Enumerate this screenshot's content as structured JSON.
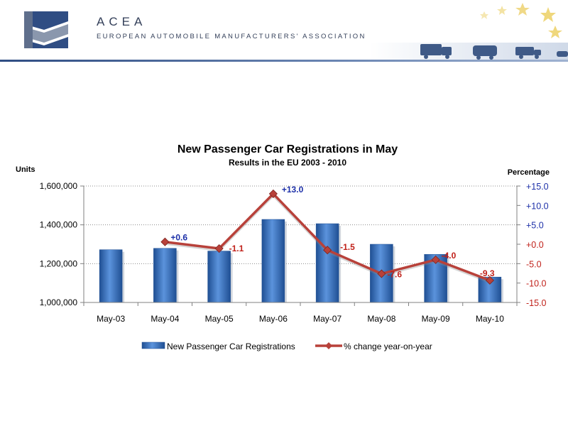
{
  "header": {
    "org_name": "ACEA",
    "org_full": "EUROPEAN AUTOMOBILE MANUFACTURERS' ASSOCIATION"
  },
  "colors": {
    "bar": "#3f77c4",
    "bar_dark": "#1f4f93",
    "line": "#b8413a",
    "positive_label": "#1c2fa8",
    "negative_label": "#c0211a",
    "header_blue": "#2f4d83"
  },
  "icons": [
    "acea-logo-icon",
    "star-icon",
    "truck-icon",
    "bus-icon",
    "car-icon"
  ],
  "chart_data": {
    "type": "bar",
    "title": "New Passenger Car Registrations in May",
    "subtitle": "Results in the EU 2003 - 2010",
    "ylabel": "Units",
    "y2label": "Percentage",
    "categories": [
      "May-03",
      "May-04",
      "May-05",
      "May-06",
      "May-07",
      "May-08",
      "May-09",
      "May-10"
    ],
    "ylim": [
      1000000,
      1600000
    ],
    "yticks": [
      1000000,
      1200000,
      1400000,
      1600000
    ],
    "ytick_labels": [
      "1,000,000",
      "1,200,000",
      "1,400,000",
      "1,600,000"
    ],
    "y2lim": [
      -15,
      15
    ],
    "y2ticks": [
      -15,
      -10,
      -5,
      0,
      5,
      10,
      15
    ],
    "y2tick_labels": [
      "-15.0",
      "-10.0",
      "-5.0",
      "+0.0",
      "+5.0",
      "+10.0",
      "+15.0"
    ],
    "grid": true,
    "legend_position": "bottom",
    "series": [
      {
        "name": "New Passenger Car Registrations",
        "type": "bar",
        "axis": "left",
        "values": [
          1272000,
          1279000,
          1265000,
          1428000,
          1406000,
          1300000,
          1248000,
          1131000
        ]
      },
      {
        "name": "% change year-on-year",
        "type": "line",
        "axis": "right",
        "values": [
          null,
          0.6,
          -1.1,
          13.0,
          -1.5,
          -7.6,
          -4.0,
          -9.3
        ],
        "labels": [
          "",
          "+0.6",
          "-1.1",
          "+13.0",
          "-1.5",
          "-7.6",
          "-4.0",
          "-9.3"
        ]
      }
    ]
  }
}
